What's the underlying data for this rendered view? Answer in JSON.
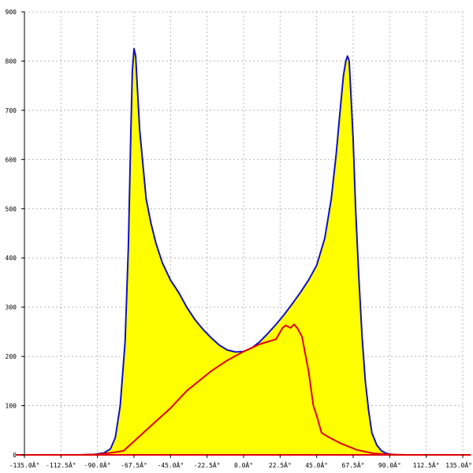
{
  "chart_data": {
    "type": "area",
    "x_tick_labels": [
      "-135.0Â°",
      "-112.5Â°",
      "-90.0Â°",
      "-67.5Â°",
      "-45.0Â°",
      "-22.5Â°",
      "0.0Â°",
      "22.5Â°",
      "45.0Â°",
      "67.5Â°",
      "90.0Â°",
      "112.5Â°",
      "135.0Â°"
    ],
    "x_ticks": [
      -135,
      -112.5,
      -90,
      -67.5,
      -45,
      -22.5,
      0,
      22.5,
      45,
      67.5,
      90,
      112.5,
      135
    ],
    "y_ticks": [
      0,
      100,
      200,
      300,
      400,
      500,
      600,
      700,
      800,
      900
    ],
    "xlim": [
      -135,
      135
    ],
    "ylim": [
      0,
      900
    ],
    "grid": true,
    "series": [
      {
        "color": "#1010c0",
        "fill": "#ffff00",
        "points": [
          [
            -100,
            0
          ],
          [
            -92,
            1
          ],
          [
            -86,
            4
          ],
          [
            -82,
            12
          ],
          [
            -79,
            35
          ],
          [
            -76,
            100
          ],
          [
            -73,
            230
          ],
          [
            -71,
            420
          ],
          [
            -69.5,
            650
          ],
          [
            -68.5,
            780
          ],
          [
            -67.5,
            825
          ],
          [
            -66.5,
            810
          ],
          [
            -65.5,
            750
          ],
          [
            -64,
            660
          ],
          [
            -62,
            590
          ],
          [
            -60,
            520
          ],
          [
            -57,
            470
          ],
          [
            -54,
            430
          ],
          [
            -50,
            390
          ],
          [
            -45,
            355
          ],
          [
            -40,
            330
          ],
          [
            -35,
            300
          ],
          [
            -30,
            275
          ],
          [
            -25,
            255
          ],
          [
            -20,
            238
          ],
          [
            -15,
            223
          ],
          [
            -10,
            213
          ],
          [
            -5,
            209
          ],
          [
            0,
            210
          ],
          [
            5,
            217
          ],
          [
            10,
            230
          ],
          [
            15,
            247
          ],
          [
            20,
            265
          ],
          [
            25,
            285
          ],
          [
            30,
            307
          ],
          [
            35,
            330
          ],
          [
            40,
            355
          ],
          [
            45,
            385
          ],
          [
            50,
            440
          ],
          [
            54,
            520
          ],
          [
            57,
            610
          ],
          [
            59.5,
            700
          ],
          [
            61.5,
            770
          ],
          [
            63,
            800
          ],
          [
            64,
            810
          ],
          [
            65,
            800
          ],
          [
            66,
            740
          ],
          [
            67.5,
            640
          ],
          [
            69,
            500
          ],
          [
            71,
            360
          ],
          [
            73,
            240
          ],
          [
            75,
            150
          ],
          [
            77,
            90
          ],
          [
            79,
            45
          ],
          [
            82,
            20
          ],
          [
            85,
            8
          ],
          [
            88,
            3
          ],
          [
            93,
            0
          ],
          [
            100,
            0
          ]
        ]
      },
      {
        "color": "#e00000",
        "points": [
          [
            -100,
            0
          ],
          [
            -90,
            1
          ],
          [
            -80,
            5
          ],
          [
            -74,
            8
          ],
          [
            -70,
            20
          ],
          [
            -60,
            50
          ],
          [
            -45,
            95
          ],
          [
            -35,
            130
          ],
          [
            -20,
            170
          ],
          [
            -10,
            192
          ],
          [
            0,
            210
          ],
          [
            10,
            225
          ],
          [
            20,
            235
          ],
          [
            24,
            258
          ],
          [
            26,
            263
          ],
          [
            29,
            258
          ],
          [
            31,
            265
          ],
          [
            33,
            258
          ],
          [
            36,
            240
          ],
          [
            40,
            170
          ],
          [
            43,
            100
          ],
          [
            45,
            80
          ],
          [
            48,
            45
          ],
          [
            53,
            35
          ],
          [
            60,
            23
          ],
          [
            70,
            10
          ],
          [
            80,
            3
          ],
          [
            90,
            1
          ],
          [
            100,
            0
          ]
        ]
      },
      {
        "color": "#e00000",
        "points": [
          [
            -140,
            0
          ],
          [
            140,
            0
          ]
        ]
      }
    ]
  }
}
